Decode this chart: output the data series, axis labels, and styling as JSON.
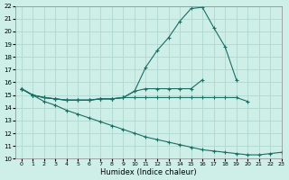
{
  "xlabel": "Humidex (Indice chaleur)",
  "bg_color": "#ceeee8",
  "grid_color": "#aed8d0",
  "line_color": "#1a6e64",
  "x_values": [
    0,
    1,
    2,
    3,
    4,
    5,
    6,
    7,
    8,
    9,
    10,
    11,
    12,
    13,
    14,
    15,
    16,
    17,
    18,
    19,
    20,
    21,
    22,
    23
  ],
  "curve_main": [
    15.5,
    15.0,
    14.8,
    14.7,
    14.6,
    14.6,
    14.6,
    14.7,
    14.7,
    14.8,
    15.3,
    17.2,
    18.5,
    19.5,
    20.8,
    21.8,
    21.9,
    20.3,
    18.8,
    16.2,
    null,
    null,
    null,
    null
  ],
  "curve_flat1": [
    15.5,
    15.0,
    14.8,
    14.7,
    14.6,
    14.6,
    14.6,
    14.7,
    14.7,
    14.8,
    15.3,
    15.5,
    15.5,
    15.5,
    15.5,
    15.5,
    16.2,
    null,
    null,
    null,
    null,
    null,
    null,
    null
  ],
  "curve_flat2": [
    15.5,
    15.0,
    14.8,
    14.7,
    14.6,
    14.6,
    14.6,
    14.7,
    14.7,
    14.8,
    14.8,
    14.8,
    14.8,
    14.8,
    14.8,
    14.8,
    14.8,
    14.8,
    14.8,
    14.8,
    14.5,
    null,
    null,
    null
  ],
  "curve_drop": [
    15.5,
    15.0,
    14.5,
    14.2,
    13.8,
    13.5,
    13.2,
    12.9,
    12.6,
    12.3,
    12.0,
    11.7,
    11.5,
    11.3,
    11.1,
    10.9,
    10.7,
    10.6,
    10.5,
    10.4,
    10.3,
    10.3,
    10.4,
    10.5
  ],
  "ylim": [
    10,
    22
  ],
  "xlim": [
    -0.5,
    23
  ],
  "yticks": [
    10,
    11,
    12,
    13,
    14,
    15,
    16,
    17,
    18,
    19,
    20,
    21,
    22
  ],
  "xticks": [
    0,
    1,
    2,
    3,
    4,
    5,
    6,
    7,
    8,
    9,
    10,
    11,
    12,
    13,
    14,
    15,
    16,
    17,
    18,
    19,
    20,
    21,
    22,
    23
  ]
}
